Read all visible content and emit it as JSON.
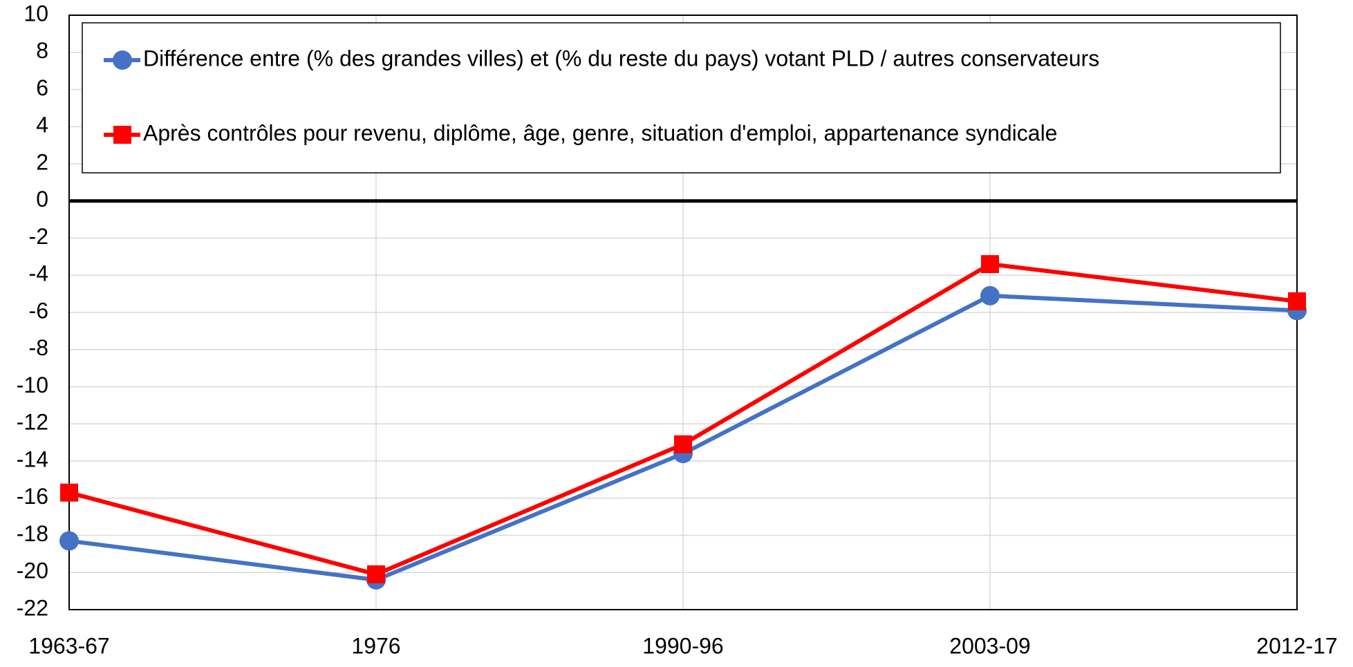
{
  "chart_data": {
    "type": "line",
    "categories": [
      "1963-67",
      "1976",
      "1990-96",
      "2003-09",
      "2012-17"
    ],
    "series": [
      {
        "name": "Différence entre (% des grandes villes) et (% du reste du pays) votant PLD / autres conservateurs",
        "color": "#4472c4",
        "marker": "circle",
        "values": [
          -18.3,
          -20.4,
          -13.6,
          -5.1,
          -5.9
        ]
      },
      {
        "name": "Après contrôles pour revenu, diplôme, âge, genre, situation d'emploi, appartenance syndicale",
        "color": "#ff0000",
        "marker": "square",
        "values": [
          -15.7,
          -20.1,
          -13.1,
          -3.4,
          -5.4
        ]
      }
    ],
    "ylim": [
      -22,
      10
    ],
    "yticks": [
      -22,
      -20,
      -18,
      -16,
      -14,
      -12,
      -10,
      -8,
      -6,
      -4,
      -2,
      0,
      2,
      4,
      6,
      8,
      10
    ],
    "grid": true,
    "legend": "top"
  }
}
